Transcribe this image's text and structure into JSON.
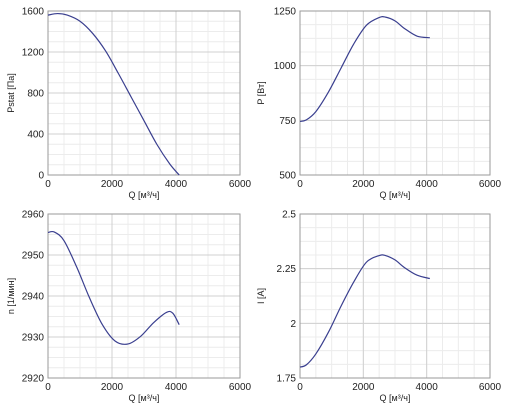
{
  "chart_data": [
    {
      "type": "line",
      "xlabel": "Q [м³/ч]",
      "ylabel": "Pstat [Па]",
      "xlim": [
        0,
        6000
      ],
      "ylim": [
        0,
        1600
      ],
      "xticks": [
        0,
        2000,
        4000,
        6000
      ],
      "yticks": [
        0,
        400,
        800,
        1200,
        1600
      ],
      "ytick_labels": [
        "0",
        "400",
        "800",
        "1200",
        "1600"
      ],
      "grid": true,
      "series": [
        {
          "x": [
            0,
            300,
            600,
            1000,
            1400,
            1800,
            2200,
            2600,
            3000,
            3400,
            3800,
            4100
          ],
          "y": [
            1560,
            1575,
            1560,
            1500,
            1380,
            1210,
            990,
            760,
            530,
            300,
            110,
            0
          ]
        }
      ]
    },
    {
      "type": "line",
      "xlabel": "Q [м³/ч]",
      "ylabel": "P [Вт]",
      "xlim": [
        0,
        6000
      ],
      "ylim": [
        500,
        1250
      ],
      "xticks": [
        0,
        2000,
        4000,
        6000
      ],
      "yticks": [
        500,
        750,
        1000,
        1250
      ],
      "ytick_labels": [
        "500",
        "750",
        "1000",
        "1250"
      ],
      "grid": true,
      "series": [
        {
          "x": [
            0,
            200,
            500,
            900,
            1300,
            1700,
            2100,
            2500,
            2700,
            3000,
            3300,
            3700,
            4100
          ],
          "y": [
            745,
            752,
            790,
            880,
            990,
            1100,
            1185,
            1220,
            1222,
            1205,
            1170,
            1135,
            1128
          ]
        }
      ]
    },
    {
      "type": "line",
      "xlabel": "Q [м³/ч]",
      "ylabel": "n [1/мин]",
      "xlim": [
        0,
        6000
      ],
      "ylim": [
        2920,
        2960
      ],
      "xticks": [
        0,
        2000,
        4000,
        6000
      ],
      "yticks": [
        2920,
        2930,
        2940,
        2950,
        2960
      ],
      "ytick_labels": [
        "2920",
        "2930",
        "2940",
        "2950",
        "2960"
      ],
      "grid": true,
      "series": [
        {
          "x": [
            0,
            200,
            500,
            900,
            1300,
            1700,
            2100,
            2500,
            2900,
            3300,
            3700,
            3900,
            4100
          ],
          "y": [
            2955.5,
            2955.6,
            2953.5,
            2947,
            2939.5,
            2933,
            2929,
            2928.3,
            2930.2,
            2933.5,
            2936,
            2935.8,
            2933
          ]
        }
      ]
    },
    {
      "type": "line",
      "xlabel": "Q [м³/ч]",
      "ylabel": "I [A]",
      "xlim": [
        0,
        6000
      ],
      "ylim": [
        1.75,
        2.5
      ],
      "xticks": [
        0,
        2000,
        4000,
        6000
      ],
      "yticks": [
        1.75,
        2,
        2.25,
        2.5
      ],
      "ytick_labels": [
        "1.75",
        "2",
        "2.25",
        "2.5"
      ],
      "grid": true,
      "series": [
        {
          "x": [
            0,
            200,
            500,
            900,
            1300,
            1700,
            2100,
            2500,
            2700,
            3000,
            3300,
            3700,
            4100
          ],
          "y": [
            1.8,
            1.81,
            1.86,
            1.96,
            2.08,
            2.19,
            2.28,
            2.31,
            2.31,
            2.29,
            2.255,
            2.22,
            2.205
          ]
        }
      ]
    }
  ],
  "colors": {
    "line": "#3a3f8f",
    "grid_major": "#d0d0d0",
    "grid_minor": "#ececec",
    "frame": "#9a9a9a"
  }
}
